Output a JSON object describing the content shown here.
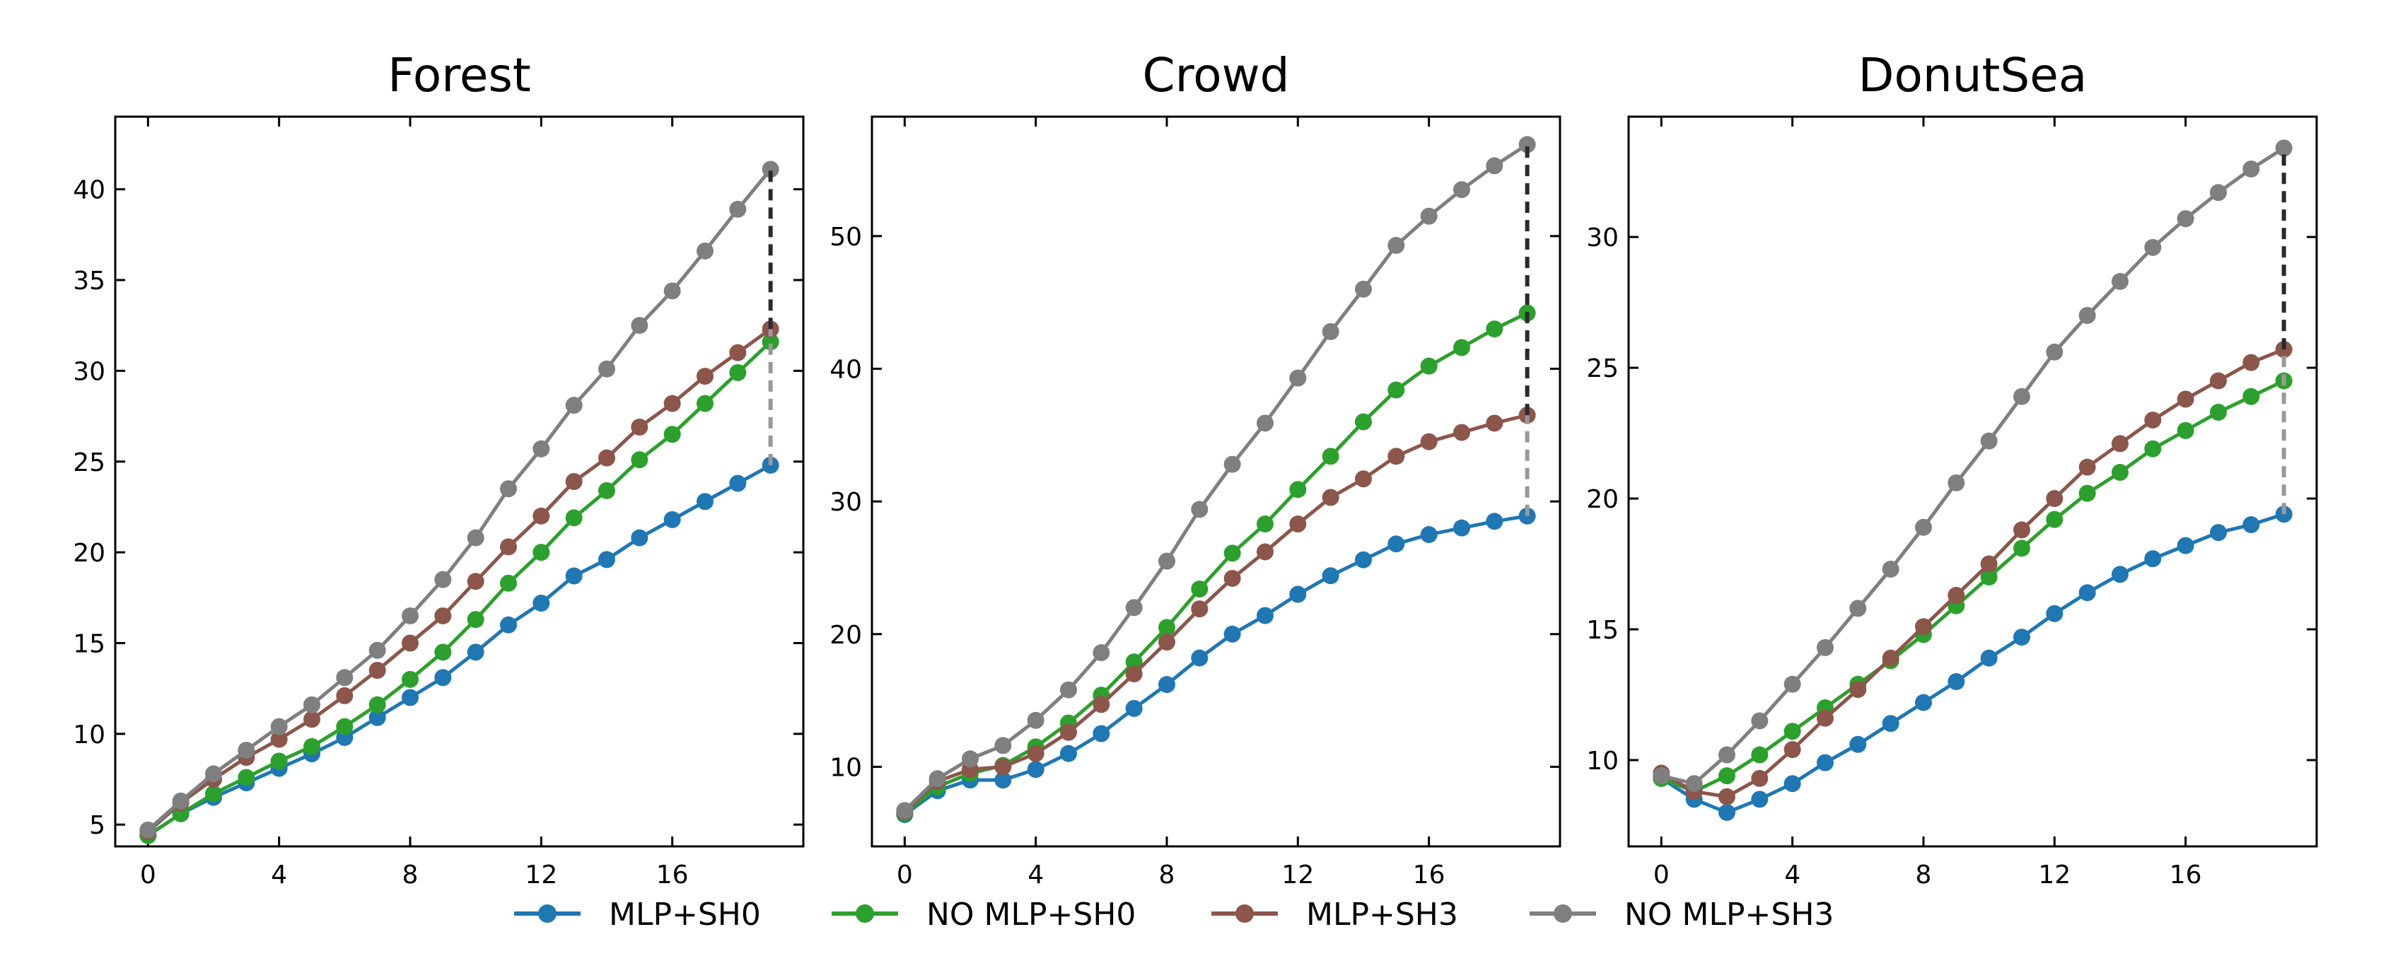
{
  "chart_data": [
    {
      "type": "line",
      "title": "Forest",
      "xlabel": "",
      "ylabel": "",
      "xlim": [
        -1,
        20
      ],
      "ylim": [
        3.8,
        44
      ],
      "xticks": [
        0,
        4,
        8,
        12,
        16
      ],
      "yticks": [
        5,
        10,
        15,
        20,
        25,
        30,
        35,
        40
      ],
      "x": [
        0,
        1,
        2,
        3,
        4,
        5,
        6,
        7,
        8,
        9,
        10,
        11,
        12,
        13,
        14,
        15,
        16,
        17,
        18,
        19
      ],
      "series": [
        {
          "name": "MLP+SH0",
          "color": "#1f77b4",
          "values": [
            4.4,
            5.6,
            6.5,
            7.3,
            8.1,
            8.9,
            9.8,
            10.9,
            12.0,
            13.1,
            14.5,
            16.0,
            17.2,
            18.7,
            19.6,
            20.8,
            21.8,
            22.8,
            23.8,
            24.8
          ]
        },
        {
          "name": "NO MLP+SH0",
          "color": "#2ca02c",
          "values": [
            4.4,
            5.6,
            6.7,
            7.6,
            8.5,
            9.3,
            10.4,
            11.6,
            13.0,
            14.5,
            16.3,
            18.3,
            20.0,
            21.9,
            23.4,
            25.1,
            26.5,
            28.2,
            29.9,
            31.6
          ]
        },
        {
          "name": "MLP+SH3",
          "color": "#8c564b",
          "values": [
            4.6,
            6.2,
            7.5,
            8.7,
            9.7,
            10.8,
            12.1,
            13.5,
            15.0,
            16.5,
            18.4,
            20.3,
            22.0,
            23.9,
            25.2,
            26.9,
            28.2,
            29.7,
            31.0,
            32.3
          ]
        },
        {
          "name": "NO MLP+SH3",
          "color": "#7f7f7f",
          "values": [
            4.7,
            6.3,
            7.8,
            9.1,
            10.4,
            11.6,
            13.1,
            14.6,
            16.5,
            18.5,
            20.8,
            23.5,
            25.7,
            28.1,
            30.1,
            32.5,
            34.4,
            36.6,
            38.9,
            41.1
          ]
        }
      ],
      "gap_markers": [
        {
          "from": 24.8,
          "to": 32.3,
          "color": "#999999"
        },
        {
          "from": 32.3,
          "to": 41.1,
          "color": "#2a2a2a"
        }
      ]
    },
    {
      "type": "line",
      "title": "Crowd",
      "xlabel": "",
      "ylabel": "",
      "xlim": [
        -1,
        20
      ],
      "ylim": [
        4,
        59
      ],
      "xticks": [
        0,
        4,
        8,
        12,
        16
      ],
      "yticks": [
        10,
        20,
        30,
        40,
        50
      ],
      "x": [
        0,
        1,
        2,
        3,
        4,
        5,
        6,
        7,
        8,
        9,
        10,
        11,
        12,
        13,
        14,
        15,
        16,
        17,
        18,
        19
      ],
      "series": [
        {
          "name": "MLP+SH0",
          "color": "#1f77b4",
          "values": [
            6.4,
            8.2,
            9.0,
            9.0,
            9.8,
            11.0,
            12.5,
            14.4,
            16.2,
            18.2,
            20.0,
            21.4,
            23.0,
            24.4,
            25.6,
            26.8,
            27.5,
            28.0,
            28.5,
            28.9
          ]
        },
        {
          "name": "NO MLP+SH0",
          "color": "#2ca02c",
          "values": [
            6.5,
            8.5,
            9.5,
            10.1,
            11.5,
            13.3,
            15.4,
            17.9,
            20.5,
            23.4,
            26.1,
            28.3,
            30.9,
            33.4,
            36.0,
            38.4,
            40.2,
            41.6,
            43.0,
            44.2
          ]
        },
        {
          "name": "MLP+SH3",
          "color": "#8c564b",
          "values": [
            6.6,
            8.9,
            9.8,
            10.0,
            11.0,
            12.6,
            14.7,
            17.0,
            19.4,
            21.9,
            24.2,
            26.2,
            28.3,
            30.3,
            31.7,
            33.4,
            34.5,
            35.2,
            35.9,
            36.5
          ]
        },
        {
          "name": "NO MLP+SH3",
          "color": "#7f7f7f",
          "values": [
            6.7,
            9.1,
            10.6,
            11.6,
            13.5,
            15.8,
            18.6,
            22.0,
            25.5,
            29.4,
            32.8,
            35.9,
            39.3,
            42.8,
            46.0,
            49.3,
            51.5,
            53.5,
            55.3,
            56.9
          ]
        }
      ],
      "gap_markers": [
        {
          "from": 28.9,
          "to": 36.5,
          "color": "#999999"
        },
        {
          "from": 36.5,
          "to": 56.9,
          "color": "#2a2a2a"
        }
      ]
    },
    {
      "type": "line",
      "title": "DonutSea",
      "xlabel": "",
      "ylabel": "",
      "xlim": [
        -1,
        20
      ],
      "ylim": [
        6.7,
        34.6
      ],
      "xticks": [
        0,
        4,
        8,
        12,
        16
      ],
      "yticks": [
        10,
        15,
        20,
        25,
        30
      ],
      "x": [
        0,
        1,
        2,
        3,
        4,
        5,
        6,
        7,
        8,
        9,
        10,
        11,
        12,
        13,
        14,
        15,
        16,
        17,
        18,
        19
      ],
      "series": [
        {
          "name": "MLP+SH0",
          "color": "#1f77b4",
          "values": [
            9.3,
            8.5,
            8.0,
            8.5,
            9.1,
            9.9,
            10.6,
            11.4,
            12.2,
            13.0,
            13.9,
            14.7,
            15.6,
            16.4,
            17.1,
            17.7,
            18.2,
            18.7,
            19.0,
            19.4
          ]
        },
        {
          "name": "NO MLP+SH0",
          "color": "#2ca02c",
          "values": [
            9.3,
            8.8,
            9.4,
            10.2,
            11.1,
            12.0,
            12.9,
            13.8,
            14.8,
            15.9,
            17.0,
            18.1,
            19.2,
            20.2,
            21.0,
            21.9,
            22.6,
            23.3,
            23.9,
            24.5
          ]
        },
        {
          "name": "MLP+SH3",
          "color": "#8c564b",
          "values": [
            9.5,
            8.8,
            8.6,
            9.3,
            10.4,
            11.6,
            12.7,
            13.9,
            15.1,
            16.3,
            17.5,
            18.8,
            20.0,
            21.2,
            22.1,
            23.0,
            23.8,
            24.5,
            25.2,
            25.7
          ]
        },
        {
          "name": "NO MLP+SH3",
          "color": "#7f7f7f",
          "values": [
            9.4,
            9.1,
            10.2,
            11.5,
            12.9,
            14.3,
            15.8,
            17.3,
            18.9,
            20.6,
            22.2,
            23.9,
            25.6,
            27.0,
            28.3,
            29.6,
            30.7,
            31.7,
            32.6,
            33.4
          ]
        }
      ],
      "gap_markers": [
        {
          "from": 19.4,
          "to": 25.7,
          "color": "#999999"
        },
        {
          "from": 25.7,
          "to": 33.4,
          "color": "#2a2a2a"
        }
      ]
    }
  ],
  "legend": {
    "placement": "bottom-center",
    "items": [
      {
        "label": "MLP+SH0",
        "color": "#1f77b4"
      },
      {
        "label": "NO MLP+SH0",
        "color": "#2ca02c"
      },
      {
        "label": "MLP+SH3",
        "color": "#8c564b"
      },
      {
        "label": "NO MLP+SH3",
        "color": "#7f7f7f"
      }
    ]
  }
}
